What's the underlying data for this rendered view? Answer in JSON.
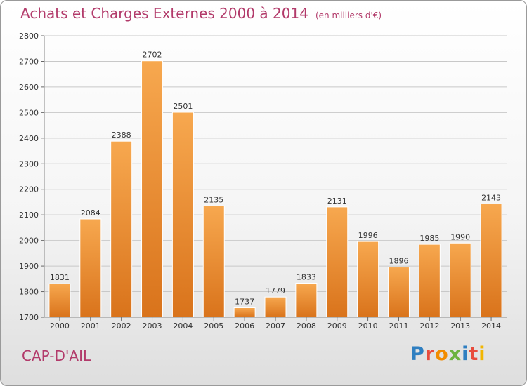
{
  "header": {
    "title": "Achats et Charges Externes 2000 à 2014",
    "unit": "(en milliers d'€)"
  },
  "footer": {
    "place": "CAP-D'AIL",
    "logo": "Proxiti"
  },
  "colors": {
    "bar_light": "#f7a84f",
    "bar_dark": "#d9731b",
    "title": "#b23a6a",
    "logo": [
      "#2f7fc1",
      "#e84b3c",
      "#f28c00",
      "#6cb33f",
      "#2f7fc1",
      "#e84b3c",
      "#f2b600"
    ]
  },
  "chart_data": {
    "type": "bar",
    "categories": [
      "2000",
      "2001",
      "2002",
      "2003",
      "2004",
      "2005",
      "2006",
      "2007",
      "2008",
      "2009",
      "2010",
      "2011",
      "2012",
      "2013",
      "2014"
    ],
    "values": [
      1831,
      2084,
      2388,
      2702,
      2501,
      2135,
      1737,
      1779,
      1833,
      2131,
      1996,
      1896,
      1985,
      1990,
      2143
    ],
    "ylim": [
      1700,
      2800
    ],
    "yticks": [
      1700,
      1800,
      1900,
      2000,
      2100,
      2200,
      2300,
      2400,
      2500,
      2600,
      2700,
      2800
    ],
    "grid": true,
    "data_labels": true
  }
}
